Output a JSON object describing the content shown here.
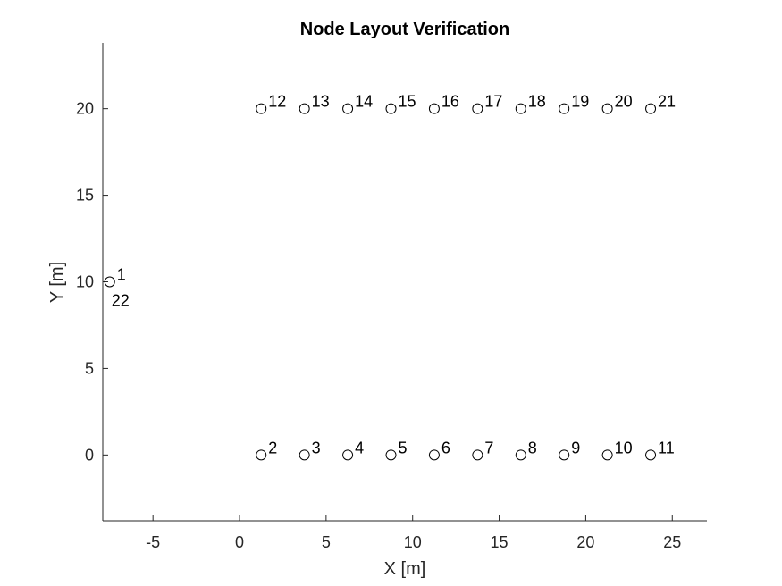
{
  "chart_data": {
    "type": "scatter",
    "title": "Node Layout Verification",
    "xlabel": "X [m]",
    "ylabel": "Y [m]",
    "xlim": [
      -7.9,
      27
    ],
    "ylim": [
      -3.8,
      23.8
    ],
    "xticks": [
      -5,
      0,
      5,
      10,
      15,
      20,
      25
    ],
    "yticks": [
      0,
      5,
      10,
      15,
      20
    ],
    "grid": false,
    "marker": "open-circle",
    "points": [
      {
        "label": "1",
        "x": -7.5,
        "y": 10
      },
      {
        "label": "2",
        "x": 1.25,
        "y": 0
      },
      {
        "label": "3",
        "x": 3.75,
        "y": 0
      },
      {
        "label": "4",
        "x": 6.25,
        "y": 0
      },
      {
        "label": "5",
        "x": 8.75,
        "y": 0
      },
      {
        "label": "6",
        "x": 11.25,
        "y": 0
      },
      {
        "label": "7",
        "x": 13.75,
        "y": 0
      },
      {
        "label": "8",
        "x": 16.25,
        "y": 0
      },
      {
        "label": "9",
        "x": 18.75,
        "y": 0
      },
      {
        "label": "10",
        "x": 21.25,
        "y": 0
      },
      {
        "label": "11",
        "x": 23.75,
        "y": 0
      },
      {
        "label": "12",
        "x": 1.25,
        "y": 20
      },
      {
        "label": "13",
        "x": 3.75,
        "y": 20
      },
      {
        "label": "14",
        "x": 6.25,
        "y": 20
      },
      {
        "label": "15",
        "x": 8.75,
        "y": 20
      },
      {
        "label": "16",
        "x": 11.25,
        "y": 20
      },
      {
        "label": "17",
        "x": 13.75,
        "y": 20
      },
      {
        "label": "18",
        "x": 16.25,
        "y": 20
      },
      {
        "label": "19",
        "x": 18.75,
        "y": 20
      },
      {
        "label": "20",
        "x": 21.25,
        "y": 20
      },
      {
        "label": "21",
        "x": 23.75,
        "y": 20
      },
      {
        "label": "22",
        "x": -7.5,
        "y": 10,
        "label_position": "below"
      }
    ]
  }
}
